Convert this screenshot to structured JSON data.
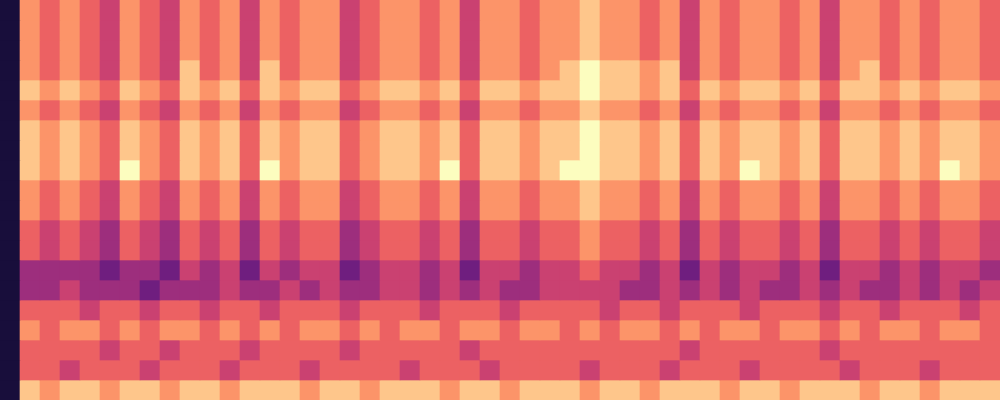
{
  "chart_data": {
    "type": "heatmap",
    "tick_labels": false,
    "grid": false,
    "zlim": [
      0,
      9
    ],
    "cells": [
      [
        1,
        7,
        6,
        7,
        6,
        5,
        7,
        6,
        5,
        7,
        6,
        7,
        5,
        7,
        6,
        7,
        7,
        5,
        6,
        7,
        7,
        6,
        7,
        5,
        7,
        7,
        6,
        7,
        7,
        8,
        7,
        7,
        6,
        7,
        5,
        7,
        6,
        7,
        7,
        6,
        7,
        5,
        7,
        7,
        6,
        7,
        6,
        7,
        7,
        6
      ],
      [
        1,
        7,
        6,
        7,
        6,
        5,
        7,
        6,
        5,
        7,
        6,
        7,
        5,
        7,
        6,
        7,
        7,
        5,
        6,
        7,
        7,
        6,
        7,
        5,
        7,
        7,
        6,
        7,
        7,
        8,
        7,
        7,
        6,
        7,
        5,
        7,
        6,
        7,
        7,
        6,
        7,
        5,
        7,
        7,
        6,
        7,
        6,
        7,
        7,
        6
      ],
      [
        1,
        7,
        6,
        7,
        6,
        5,
        7,
        6,
        5,
        7,
        6,
        7,
        5,
        7,
        6,
        7,
        7,
        5,
        6,
        7,
        7,
        6,
        7,
        5,
        7,
        7,
        6,
        7,
        7,
        8,
        7,
        7,
        6,
        7,
        5,
        7,
        6,
        7,
        7,
        6,
        7,
        5,
        7,
        7,
        6,
        7,
        6,
        7,
        7,
        6
      ],
      [
        1,
        7,
        6,
        7,
        6,
        5,
        7,
        6,
        5,
        8,
        6,
        7,
        5,
        8,
        6,
        7,
        7,
        5,
        6,
        7,
        7,
        6,
        7,
        5,
        7,
        7,
        6,
        7,
        8,
        9,
        8,
        8,
        7,
        8,
        5,
        7,
        6,
        7,
        7,
        6,
        7,
        5,
        7,
        8,
        6,
        7,
        6,
        7,
        7,
        6
      ],
      [
        1,
        8,
        7,
        8,
        7,
        6,
        8,
        7,
        6,
        8,
        7,
        8,
        6,
        8,
        7,
        8,
        8,
        6,
        7,
        8,
        8,
        7,
        8,
        6,
        8,
        8,
        7,
        8,
        8,
        9,
        8,
        8,
        7,
        8,
        6,
        8,
        7,
        8,
        8,
        7,
        8,
        6,
        8,
        8,
        7,
        8,
        7,
        8,
        8,
        7
      ],
      [
        1,
        7,
        6,
        7,
        6,
        5,
        7,
        6,
        5,
        7,
        6,
        7,
        5,
        7,
        6,
        7,
        7,
        5,
        6,
        7,
        7,
        6,
        7,
        5,
        7,
        7,
        6,
        7,
        7,
        8,
        7,
        7,
        6,
        7,
        5,
        7,
        6,
        7,
        7,
        6,
        7,
        5,
        7,
        7,
        6,
        7,
        6,
        7,
        7,
        6
      ],
      [
        1,
        8,
        7,
        8,
        7,
        6,
        8,
        7,
        6,
        8,
        7,
        8,
        6,
        8,
        7,
        8,
        8,
        6,
        7,
        8,
        8,
        7,
        8,
        6,
        8,
        8,
        7,
        8,
        8,
        9,
        8,
        8,
        7,
        8,
        6,
        8,
        7,
        8,
        8,
        7,
        8,
        6,
        8,
        8,
        7,
        8,
        7,
        8,
        8,
        7
      ],
      [
        1,
        8,
        7,
        8,
        7,
        6,
        8,
        7,
        6,
        8,
        7,
        8,
        6,
        8,
        7,
        8,
        8,
        6,
        7,
        8,
        8,
        7,
        8,
        6,
        8,
        8,
        7,
        8,
        8,
        9,
        8,
        8,
        7,
        8,
        6,
        8,
        7,
        8,
        8,
        7,
        8,
        6,
        8,
        8,
        7,
        8,
        7,
        8,
        8,
        7
      ],
      [
        1,
        8,
        7,
        8,
        7,
        6,
        9,
        7,
        6,
        8,
        7,
        8,
        6,
        9,
        7,
        8,
        8,
        6,
        7,
        8,
        8,
        7,
        9,
        6,
        8,
        8,
        7,
        8,
        9,
        9,
        8,
        8,
        7,
        8,
        6,
        8,
        7,
        9,
        8,
        7,
        8,
        6,
        8,
        8,
        7,
        8,
        7,
        9,
        8,
        7
      ],
      [
        1,
        7,
        6,
        7,
        6,
        5,
        7,
        6,
        5,
        7,
        6,
        7,
        5,
        7,
        6,
        7,
        7,
        5,
        6,
        7,
        7,
        6,
        7,
        5,
        7,
        7,
        6,
        7,
        7,
        8,
        7,
        7,
        6,
        7,
        5,
        7,
        6,
        7,
        7,
        6,
        7,
        5,
        7,
        7,
        6,
        7,
        6,
        7,
        7,
        6
      ],
      [
        1,
        7,
        6,
        7,
        6,
        5,
        7,
        6,
        5,
        7,
        6,
        7,
        5,
        7,
        6,
        7,
        7,
        5,
        6,
        7,
        7,
        6,
        7,
        5,
        7,
        7,
        6,
        7,
        7,
        8,
        7,
        7,
        6,
        7,
        5,
        7,
        6,
        7,
        7,
        6,
        7,
        5,
        7,
        7,
        6,
        7,
        6,
        7,
        7,
        6
      ],
      [
        1,
        6,
        5,
        6,
        5,
        4,
        6,
        5,
        4,
        6,
        5,
        6,
        4,
        6,
        5,
        6,
        6,
        4,
        5,
        6,
        6,
        5,
        6,
        4,
        6,
        6,
        5,
        6,
        6,
        7,
        6,
        6,
        5,
        6,
        4,
        6,
        5,
        6,
        6,
        5,
        6,
        4,
        6,
        6,
        5,
        6,
        5,
        6,
        6,
        5
      ],
      [
        1,
        6,
        5,
        6,
        5,
        4,
        6,
        5,
        4,
        6,
        5,
        6,
        4,
        6,
        5,
        6,
        6,
        4,
        5,
        6,
        6,
        5,
        6,
        4,
        6,
        6,
        5,
        6,
        6,
        7,
        6,
        6,
        5,
        6,
        4,
        6,
        5,
        6,
        6,
        5,
        6,
        4,
        6,
        6,
        5,
        6,
        5,
        6,
        6,
        5
      ],
      [
        1,
        4,
        4,
        4,
        4,
        3,
        4,
        4,
        3,
        5,
        4,
        5,
        3,
        5,
        4,
        5,
        5,
        3,
        4,
        5,
        5,
        4,
        5,
        3,
        5,
        5,
        4,
        5,
        5,
        6,
        5,
        5,
        4,
        5,
        3,
        5,
        4,
        5,
        5,
        4,
        5,
        3,
        5,
        5,
        4,
        5,
        4,
        5,
        5,
        4
      ],
      [
        1,
        4,
        4,
        5,
        4,
        4,
        4,
        3,
        4,
        4,
        4,
        5,
        4,
        4,
        5,
        4,
        5,
        4,
        4,
        5,
        5,
        4,
        5,
        4,
        5,
        4,
        4,
        5,
        5,
        5,
        5,
        4,
        4,
        5,
        4,
        5,
        4,
        5,
        4,
        4,
        5,
        4,
        5,
        4,
        4,
        5,
        4,
        5,
        4,
        5
      ],
      [
        1,
        6,
        6,
        6,
        5,
        6,
        6,
        5,
        6,
        6,
        5,
        6,
        6,
        5,
        6,
        6,
        6,
        5,
        6,
        6,
        6,
        5,
        6,
        6,
        6,
        5,
        6,
        6,
        6,
        6,
        5,
        6,
        6,
        5,
        6,
        6,
        6,
        5,
        6,
        6,
        6,
        5,
        6,
        6,
        5,
        6,
        6,
        6,
        5,
        6
      ],
      [
        1,
        7,
        6,
        7,
        7,
        6,
        7,
        6,
        7,
        7,
        6,
        7,
        6,
        7,
        6,
        7,
        7,
        6,
        7,
        6,
        7,
        7,
        6,
        7,
        7,
        6,
        7,
        7,
        6,
        7,
        6,
        7,
        7,
        6,
        7,
        6,
        7,
        7,
        6,
        7,
        7,
        6,
        7,
        6,
        7,
        7,
        6,
        7,
        7,
        6
      ],
      [
        1,
        6,
        6,
        6,
        6,
        5,
        6,
        6,
        5,
        6,
        6,
        6,
        5,
        6,
        6,
        6,
        6,
        5,
        6,
        6,
        6,
        6,
        6,
        5,
        6,
        6,
        6,
        6,
        6,
        6,
        6,
        6,
        6,
        6,
        5,
        6,
        6,
        6,
        6,
        6,
        6,
        5,
        6,
        6,
        6,
        6,
        6,
        6,
        6,
        6
      ],
      [
        1,
        6,
        6,
        5,
        6,
        6,
        6,
        5,
        6,
        6,
        6,
        5,
        6,
        6,
        6,
        5,
        6,
        6,
        6,
        6,
        5,
        6,
        6,
        6,
        5,
        6,
        6,
        6,
        6,
        5,
        6,
        6,
        6,
        5,
        6,
        6,
        6,
        5,
        6,
        6,
        6,
        6,
        5,
        6,
        6,
        6,
        5,
        6,
        6,
        6
      ],
      [
        1,
        8,
        7,
        8,
        8,
        7,
        8,
        8,
        7,
        8,
        8,
        7,
        8,
        8,
        8,
        7,
        8,
        8,
        7,
        8,
        8,
        8,
        7,
        8,
        8,
        7,
        8,
        8,
        8,
        7,
        8,
        8,
        7,
        8,
        8,
        8,
        7,
        8,
        8,
        7,
        8,
        8,
        8,
        7,
        8,
        8,
        7,
        8,
        8,
        8
      ]
    ]
  }
}
